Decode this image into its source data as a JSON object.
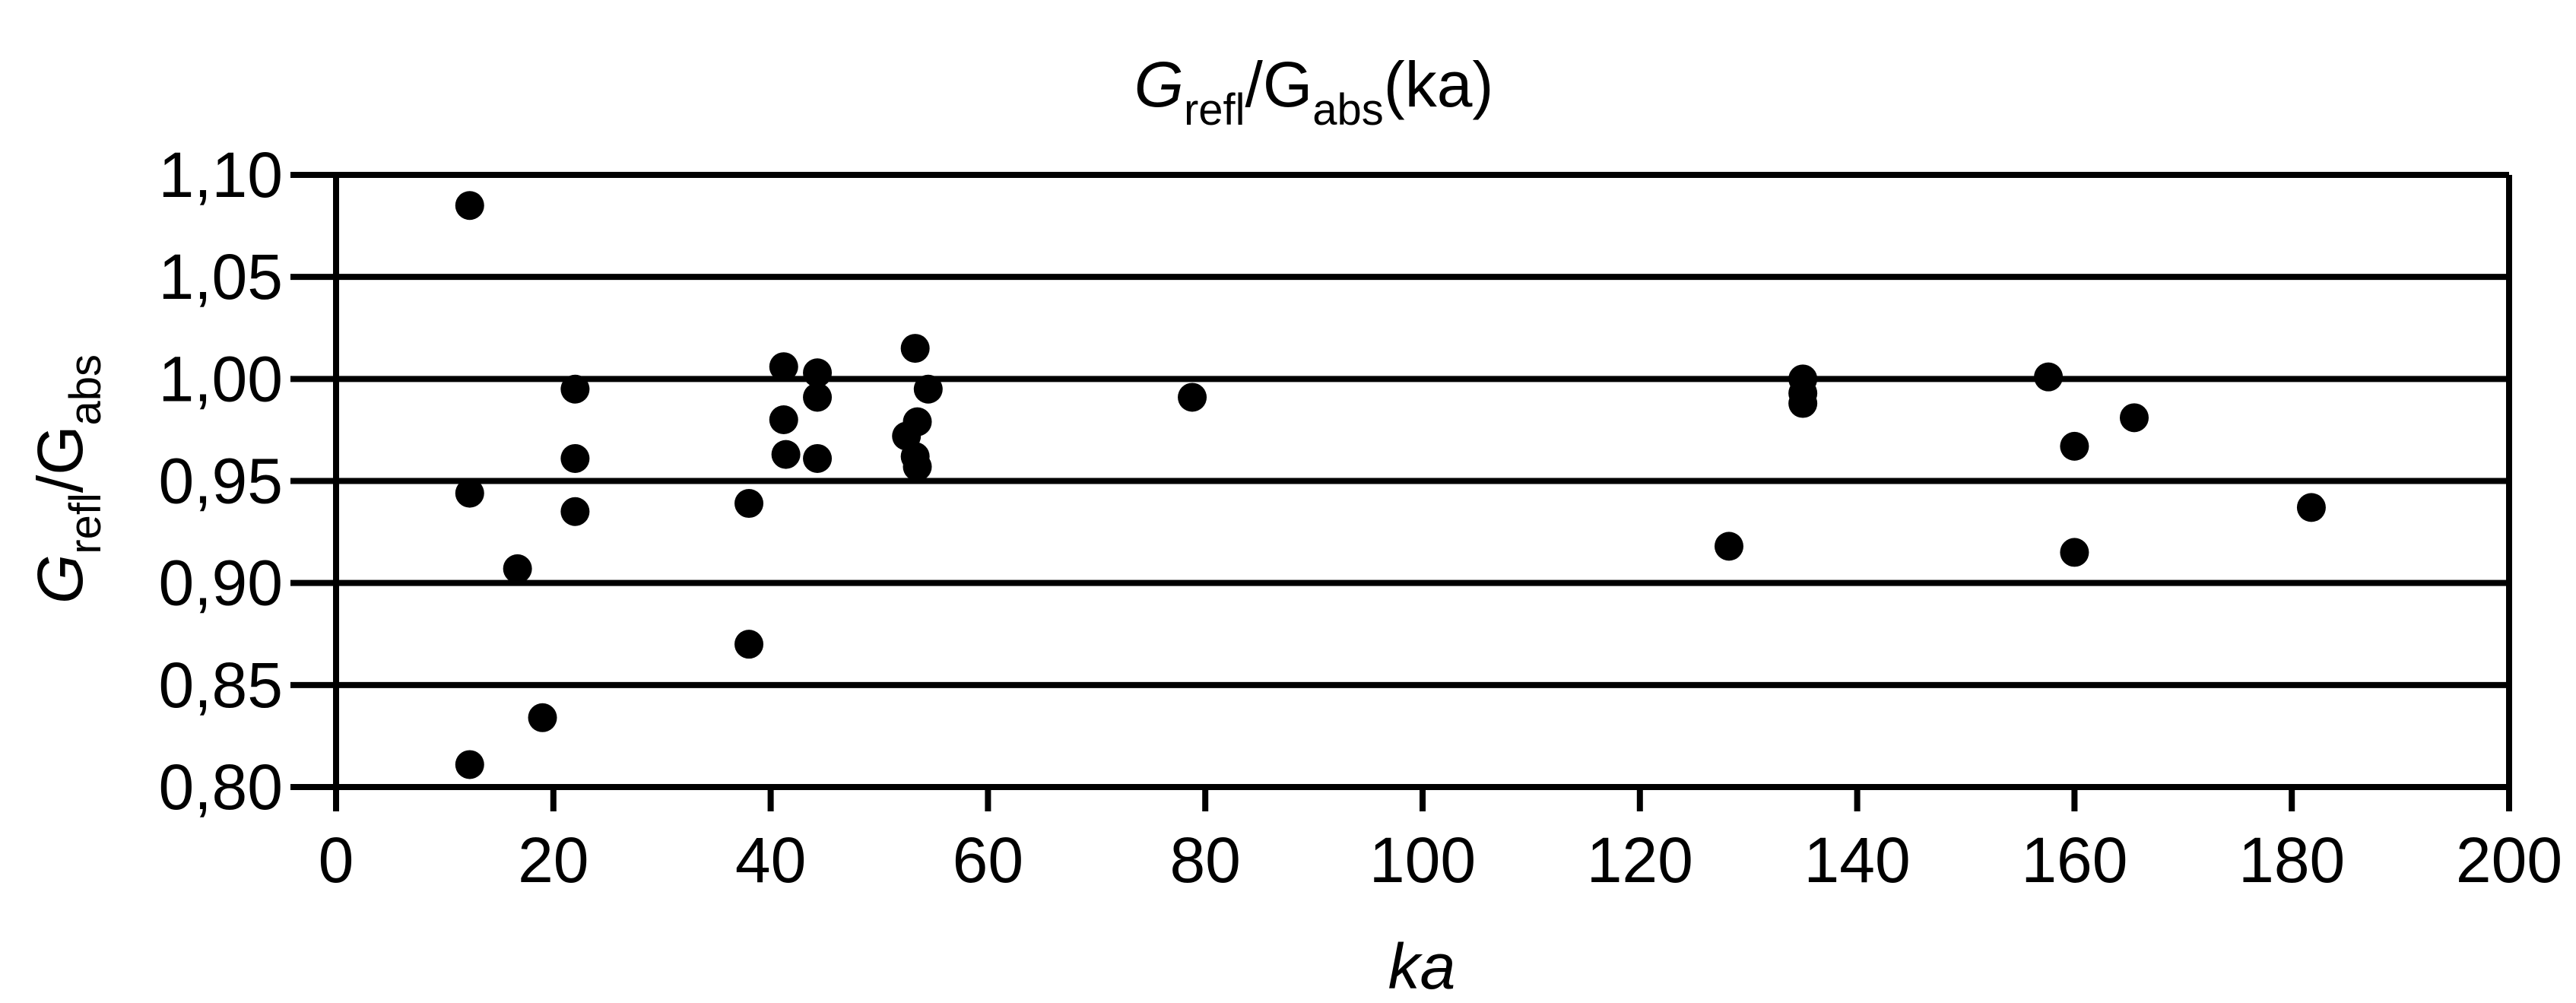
{
  "chart_data": {
    "type": "scatter",
    "title": {
      "main": "G",
      "main_sub": "refl",
      "sep": "/G",
      "den_sub": "abs",
      "tail": "(ka)"
    },
    "xlabel": "ka",
    "ylabel": {
      "main": "G",
      "main_sub": "refl",
      "sep": "/G",
      "den_sub": "abs"
    },
    "xlim": [
      0,
      200
    ],
    "ylim": [
      0.8,
      1.1
    ],
    "x_ticks": [
      0,
      20,
      40,
      60,
      80,
      100,
      120,
      140,
      160,
      180,
      200
    ],
    "x_tick_labels": [
      "0",
      "20",
      "40",
      "60",
      "80",
      "100",
      "120",
      "140",
      "160",
      "180",
      "200"
    ],
    "y_ticks": [
      0.8,
      0.85,
      0.9,
      0.95,
      1.0,
      1.05,
      1.1
    ],
    "y_tick_labels": [
      "0,80",
      "0,85",
      "0,90",
      "0,95",
      "1,00",
      "1,05",
      "1,10"
    ],
    "grid": "horizontal",
    "marker_color": "#000000",
    "points": [
      {
        "x": 12.3,
        "y": 1.085
      },
      {
        "x": 12.3,
        "y": 0.944
      },
      {
        "x": 12.3,
        "y": 0.811
      },
      {
        "x": 16.7,
        "y": 0.907
      },
      {
        "x": 19.0,
        "y": 0.834
      },
      {
        "x": 22.0,
        "y": 0.995
      },
      {
        "x": 22.0,
        "y": 0.961
      },
      {
        "x": 22.0,
        "y": 0.935
      },
      {
        "x": 38.0,
        "y": 0.939
      },
      {
        "x": 38.0,
        "y": 0.87
      },
      {
        "x": 41.2,
        "y": 1.006
      },
      {
        "x": 41.2,
        "y": 0.98
      },
      {
        "x": 41.4,
        "y": 0.963
      },
      {
        "x": 44.3,
        "y": 1.003
      },
      {
        "x": 44.3,
        "y": 0.991
      },
      {
        "x": 44.3,
        "y": 0.961
      },
      {
        "x": 53.3,
        "y": 1.015
      },
      {
        "x": 54.5,
        "y": 0.995
      },
      {
        "x": 53.5,
        "y": 0.979
      },
      {
        "x": 52.5,
        "y": 0.972
      },
      {
        "x": 53.3,
        "y": 0.962
      },
      {
        "x": 53.5,
        "y": 0.957
      },
      {
        "x": 78.8,
        "y": 0.991
      },
      {
        "x": 128.2,
        "y": 0.918
      },
      {
        "x": 135.0,
        "y": 1.0
      },
      {
        "x": 135.0,
        "y": 0.993
      },
      {
        "x": 135.0,
        "y": 0.988
      },
      {
        "x": 157.6,
        "y": 1.001
      },
      {
        "x": 160.0,
        "y": 0.967
      },
      {
        "x": 160.0,
        "y": 0.915
      },
      {
        "x": 165.5,
        "y": 0.981
      },
      {
        "x": 181.8,
        "y": 0.937
      }
    ]
  }
}
